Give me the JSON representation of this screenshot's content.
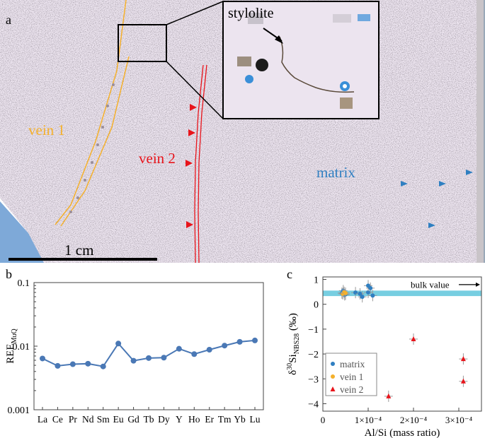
{
  "panel_a": {
    "letter": "a",
    "labels": {
      "vein1": "vein 1",
      "vein2": "vein 2",
      "matrix": "matrix",
      "stylolite": "stylolite",
      "scale": "1 cm"
    },
    "colors": {
      "vein1": "#f4b02c",
      "vein2": "#e8141b",
      "matrix": "#2f7fc1",
      "background": "#ece4ef",
      "sea": "#7ea9d8"
    }
  },
  "panel_b": {
    "letter": "b",
    "ylabel_main": "REE",
    "ylabel_sub": "MuQ"
  },
  "panel_c": {
    "letter": "c",
    "ylabel_delta": "δ",
    "ylabel_sup": "30",
    "ylabel_mid": "Si",
    "ylabel_sub": "NBS28",
    "ylabel_unit": " (‰)",
    "bulk_label": "bulk value"
  },
  "chart_data": [
    {
      "type": "line",
      "panel": "b",
      "categories": [
        "La",
        "Ce",
        "Pr",
        "Nd",
        "Sm",
        "Eu",
        "Gd",
        "Tb",
        "Dy",
        "Y",
        "Ho",
        "Er",
        "Tm",
        "Yb",
        "Lu"
      ],
      "values": [
        0.0064,
        0.0049,
        0.0052,
        0.0053,
        0.0048,
        0.011,
        0.0059,
        0.0065,
        0.0066,
        0.0091,
        0.0075,
        0.0088,
        0.0102,
        0.0117,
        0.0123
      ],
      "yscale": "log",
      "ylim": [
        0.001,
        0.1
      ],
      "yticks": [
        "0.001",
        "0.01",
        "0.1"
      ],
      "ylabel": "REEMuQ",
      "color": "#4a78b5"
    },
    {
      "type": "scatter",
      "panel": "c",
      "xlabel": "Al/Si (mass ratio)",
      "ylabel": "δ30SiNBS28 (‰)",
      "xlim": [
        0,
        0.00035
      ],
      "ylim": [
        -4.3,
        1.1
      ],
      "xticks": [
        {
          "v": 0,
          "label": "0"
        },
        {
          "v": 0.0001,
          "label": "1×10⁻⁴"
        },
        {
          "v": 0.0002,
          "label": "2×10⁻⁴"
        },
        {
          "v": 0.0003,
          "label": "3×10⁻⁴"
        }
      ],
      "yticks": [
        1,
        0,
        -1,
        -2,
        -3,
        -4
      ],
      "bulk_band": [
        0.33,
        0.55
      ],
      "series": [
        {
          "name": "matrix",
          "color": "#2f7fc1",
          "marker": "circle",
          "points": [
            [
              4.2e-05,
              0.45
            ],
            [
              4.5e-05,
              0.55
            ],
            [
              5e-05,
              0.4
            ],
            [
              7.2e-05,
              0.47
            ],
            [
              8.2e-05,
              0.42
            ],
            [
              8.7e-05,
              0.3
            ],
            [
              0.0001,
              0.48
            ],
            [
              0.0001,
              0.75
            ],
            [
              0.000105,
              0.65
            ],
            [
              0.00011,
              0.35
            ],
            [
              4.8e-05,
              0.38
            ]
          ]
        },
        {
          "name": "vein 1",
          "color": "#f4b02c",
          "marker": "circle",
          "points": [
            [
              4.4e-05,
              0.42
            ],
            [
              4.7e-05,
              0.48
            ],
            [
              5e-05,
              0.45
            ]
          ]
        },
        {
          "name": "vein 2",
          "color": "#e8141b",
          "marker": "triangle",
          "points": [
            [
              0.000145,
              -3.7
            ],
            [
              0.0002,
              -1.4
            ],
            [
              0.00031,
              -2.2
            ],
            [
              0.00031,
              -3.1
            ]
          ]
        }
      ]
    }
  ]
}
